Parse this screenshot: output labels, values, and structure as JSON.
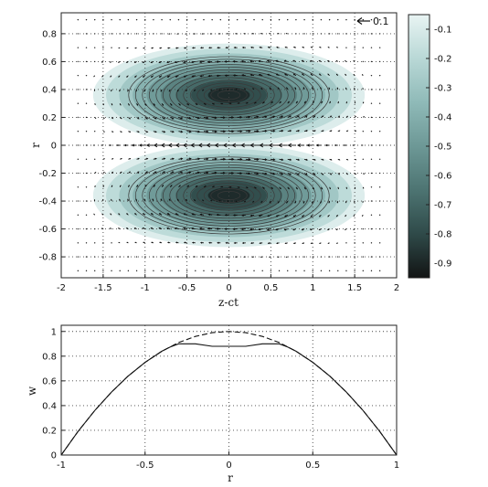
{
  "chart_data": [
    {
      "type": "heatmap",
      "subtype": "filled-contour-with-quiver",
      "xlabel": "z-ct",
      "ylabel": "r",
      "xlim": [
        -2,
        2
      ],
      "ylim": [
        -0.95,
        0.95
      ],
      "xticks": [
        "-2",
        "-1.5",
        "-1",
        "-0.5",
        "0",
        "0.5",
        "1",
        "1.5",
        "2"
      ],
      "yticks": [
        "-0.8",
        "-0.6",
        "-0.4",
        "-0.2",
        "0",
        "0.2",
        "0.4",
        "0.6",
        "0.8"
      ],
      "grid": true,
      "vortices": [
        {
          "center": [
            0,
            0.36
          ],
          "min_value": -0.95
        },
        {
          "center": [
            0,
            -0.36
          ],
          "min_value": -0.95
        }
      ],
      "vector_scale": {
        "label": "0.1",
        "value": 0.1
      },
      "colorbar": {
        "range": [
          -0.95,
          -0.05
        ],
        "ticks": [
          "-0.1",
          "-0.2",
          "-0.3",
          "-0.4",
          "-0.5",
          "-0.6",
          "-0.7",
          "-0.8",
          "-0.9"
        ],
        "colors": [
          "#e9f4f3",
          "#b9d8d6",
          "#8fbab8",
          "#6d9896",
          "#4d7472",
          "#2f4a49",
          "#121414"
        ]
      }
    },
    {
      "type": "line",
      "xlabel": "r",
      "ylabel": "w",
      "xlim": [
        -1,
        1
      ],
      "ylim": [
        0,
        1.05
      ],
      "xticks": [
        "-1",
        "-0.5",
        "0",
        "0.5",
        "1"
      ],
      "yticks": [
        "0",
        "0.2",
        "0.4",
        "0.6",
        "0.8",
        "1"
      ],
      "grid": true,
      "series": [
        {
          "style": "solid",
          "x": [
            -1,
            -0.9,
            -0.8,
            -0.7,
            -0.6,
            -0.5,
            -0.4,
            -0.35,
            -0.3,
            -0.2,
            -0.1,
            0,
            0.1,
            0.2,
            0.3,
            0.35,
            0.4,
            0.5,
            0.6,
            0.7,
            0.8,
            0.9,
            1
          ],
          "y": [
            0,
            0.19,
            0.36,
            0.51,
            0.64,
            0.75,
            0.84,
            0.875,
            0.9,
            0.9,
            0.88,
            0.88,
            0.88,
            0.9,
            0.9,
            0.875,
            0.84,
            0.75,
            0.64,
            0.51,
            0.36,
            0.19,
            0
          ]
        },
        {
          "style": "dashed",
          "x": [
            -1,
            -0.9,
            -0.8,
            -0.7,
            -0.6,
            -0.5,
            -0.4,
            -0.3,
            -0.2,
            -0.1,
            0,
            0.1,
            0.2,
            0.3,
            0.4,
            0.5,
            0.6,
            0.7,
            0.8,
            0.9,
            1
          ],
          "y": [
            0,
            0.19,
            0.36,
            0.51,
            0.64,
            0.75,
            0.84,
            0.91,
            0.96,
            0.99,
            1,
            0.99,
            0.96,
            0.91,
            0.84,
            0.75,
            0.64,
            0.51,
            0.36,
            0.19,
            0
          ]
        }
      ]
    }
  ]
}
